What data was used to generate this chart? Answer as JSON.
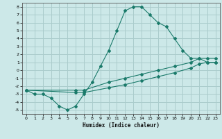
{
  "xlabel": "Humidex (Indice chaleur)",
  "bg_color": "#cce8e8",
  "grid_color": "#aacccc",
  "line_color": "#1a7a6a",
  "xlim": [
    -0.5,
    23.5
  ],
  "ylim": [
    -5.5,
    8.5
  ],
  "xticks": [
    0,
    1,
    2,
    3,
    4,
    5,
    6,
    7,
    8,
    9,
    10,
    11,
    12,
    13,
    14,
    15,
    16,
    17,
    18,
    19,
    20,
    21,
    22,
    23
  ],
  "yticks": [
    -5,
    -4,
    -3,
    -2,
    -1,
    0,
    1,
    2,
    3,
    4,
    5,
    6,
    7,
    8
  ],
  "line1_x": [
    0,
    1,
    2,
    3,
    4,
    5,
    6,
    7,
    8,
    9,
    10,
    11,
    12,
    13,
    14,
    15,
    16,
    17,
    18,
    19,
    20,
    21,
    22,
    23
  ],
  "line1_y": [
    -2.5,
    -3.0,
    -3.0,
    -3.5,
    -4.5,
    -5.0,
    -4.5,
    -3.0,
    -1.5,
    0.5,
    2.5,
    5.0,
    7.5,
    8.0,
    8.0,
    7.0,
    6.0,
    5.5,
    4.0,
    2.5,
    1.5,
    1.5,
    1.0,
    1.0
  ],
  "line2_x": [
    0,
    6,
    7,
    10,
    12,
    14,
    16,
    18,
    20,
    21,
    22,
    23
  ],
  "line2_y": [
    -2.5,
    -2.5,
    -2.5,
    -1.5,
    -1.0,
    -0.5,
    0.0,
    0.5,
    1.0,
    1.5,
    1.5,
    1.5
  ],
  "line3_x": [
    0,
    6,
    7,
    10,
    12,
    14,
    16,
    18,
    20,
    21,
    22,
    23
  ],
  "line3_y": [
    -2.5,
    -2.8,
    -2.8,
    -2.2,
    -1.8,
    -1.3,
    -0.8,
    -0.3,
    0.3,
    0.8,
    1.0,
    1.0
  ]
}
